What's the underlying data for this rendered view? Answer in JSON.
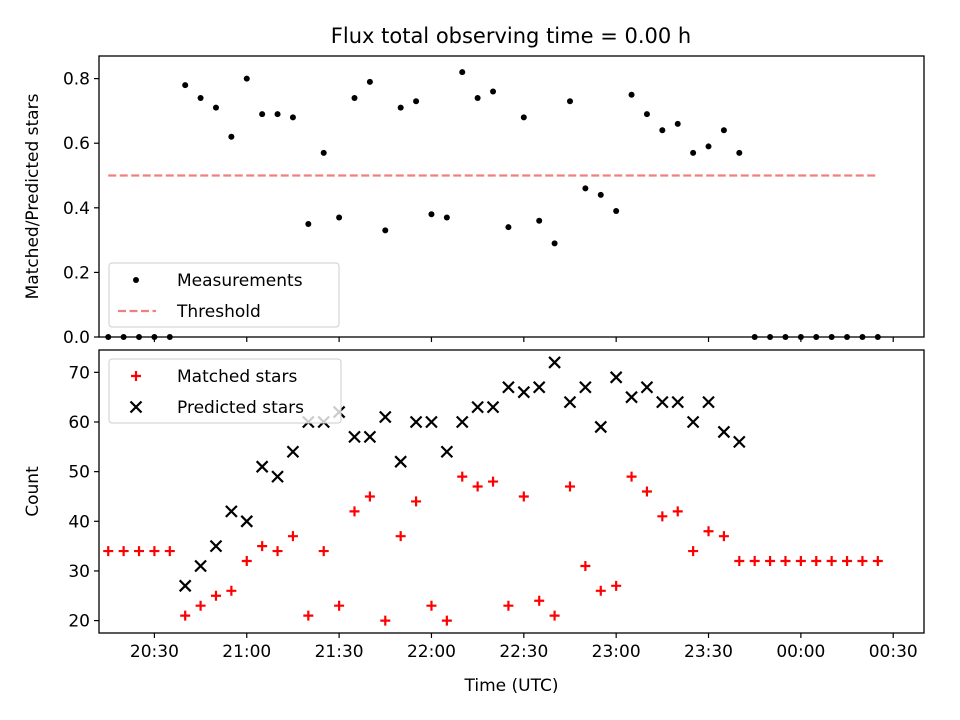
{
  "figure": {
    "title": "Flux total observing time = 0.00 h"
  },
  "chart_data": [
    {
      "type": "scatter",
      "panel": "top",
      "xlabel": "",
      "ylabel": "Matched/Predicted stars",
      "xlim": [
        "20:12",
        "00:40"
      ],
      "ylim": [
        0,
        0.87
      ],
      "yticks": [
        "0.0",
        "0.2",
        "0.4",
        "0.6",
        "0.8"
      ],
      "legend": {
        "placement": "lower-left",
        "entries": [
          "Measurements",
          "Threshold"
        ]
      },
      "series": [
        {
          "name": "Measurements",
          "color": "#000000",
          "marker": "dot",
          "x": [
            "20:15",
            "20:20",
            "20:25",
            "20:30",
            "20:35",
            "20:40",
            "20:45",
            "20:50",
            "20:55",
            "21:00",
            "21:05",
            "21:10",
            "21:15",
            "21:20",
            "21:25",
            "21:30",
            "21:35",
            "21:40",
            "21:45",
            "21:50",
            "21:55",
            "22:00",
            "22:05",
            "22:10",
            "22:15",
            "22:20",
            "22:25",
            "22:30",
            "22:35",
            "22:40",
            "22:45",
            "22:50",
            "22:55",
            "23:00",
            "23:05",
            "23:10",
            "23:15",
            "23:20",
            "23:25",
            "23:30",
            "23:35",
            "23:40",
            "23:45",
            "23:50",
            "23:55",
            "00:00",
            "00:05",
            "00:10",
            "00:15",
            "00:20",
            "00:25"
          ],
          "y": [
            0,
            0,
            0,
            0,
            0,
            0.78,
            0.74,
            0.71,
            0.62,
            0.8,
            0.69,
            0.69,
            0.68,
            0.35,
            0.57,
            0.37,
            0.74,
            0.79,
            0.33,
            0.71,
            0.73,
            0.38,
            0.37,
            0.82,
            0.74,
            0.76,
            0.34,
            0.68,
            0.36,
            0.29,
            0.73,
            0.46,
            0.44,
            0.39,
            0.75,
            0.69,
            0.64,
            0.66,
            0.57,
            0.59,
            0.64,
            0.57,
            0,
            0,
            0,
            0,
            0,
            0,
            0,
            0,
            0
          ]
        },
        {
          "name": "Threshold",
          "color": "#f08080",
          "style": "dashed",
          "x": [
            "20:15",
            "00:25"
          ],
          "y": [
            0.5,
            0.5
          ]
        }
      ]
    },
    {
      "type": "scatter",
      "panel": "bottom",
      "xlabel": "Time (UTC)",
      "ylabel": "Count",
      "xlim": [
        "20:12",
        "00:40"
      ],
      "ylim": [
        17.5,
        74.5
      ],
      "xticks": [
        "20:30",
        "21:00",
        "21:30",
        "22:00",
        "22:30",
        "23:00",
        "23:30",
        "00:00",
        "00:30"
      ],
      "yticks": [
        "20",
        "30",
        "40",
        "50",
        "60",
        "70"
      ],
      "legend": {
        "placement": "upper-left",
        "entries": [
          "Matched stars",
          "Predicted stars"
        ]
      },
      "series": [
        {
          "name": "Matched stars",
          "color": "#ff0000",
          "marker": "plus",
          "x": [
            "20:15",
            "20:20",
            "20:25",
            "20:30",
            "20:35",
            "20:40",
            "20:45",
            "20:50",
            "20:55",
            "21:00",
            "21:05",
            "21:10",
            "21:15",
            "21:20",
            "21:25",
            "21:30",
            "21:35",
            "21:40",
            "21:45",
            "21:50",
            "21:55",
            "22:00",
            "22:05",
            "22:10",
            "22:15",
            "22:20",
            "22:25",
            "22:30",
            "22:35",
            "22:40",
            "22:45",
            "22:50",
            "22:55",
            "23:00",
            "23:05",
            "23:10",
            "23:15",
            "23:20",
            "23:25",
            "23:30",
            "23:35",
            "23:40",
            "23:45",
            "23:50",
            "23:55",
            "00:00",
            "00:05",
            "00:10",
            "00:15",
            "00:20",
            "00:25"
          ],
          "y": [
            34,
            34,
            34,
            34,
            34,
            21,
            23,
            25,
            26,
            32,
            35,
            34,
            37,
            21,
            34,
            23,
            42,
            45,
            20,
            37,
            44,
            23,
            20,
            49,
            47,
            48,
            23,
            45,
            24,
            21,
            47,
            31,
            26,
            27,
            49,
            46,
            41,
            42,
            34,
            38,
            37,
            32,
            32,
            32,
            32,
            32,
            32,
            32,
            32,
            32,
            32
          ]
        },
        {
          "name": "Predicted stars",
          "color": "#000000",
          "marker": "x",
          "x": [
            "20:40",
            "20:45",
            "20:50",
            "20:55",
            "21:00",
            "21:05",
            "21:10",
            "21:15",
            "21:20",
            "21:25",
            "21:30",
            "21:35",
            "21:40",
            "21:45",
            "21:50",
            "21:55",
            "22:00",
            "22:05",
            "22:10",
            "22:15",
            "22:20",
            "22:25",
            "22:30",
            "22:35",
            "22:40",
            "22:45",
            "22:50",
            "22:55",
            "23:00",
            "23:05",
            "23:10",
            "23:15",
            "23:20",
            "23:25",
            "23:30",
            "23:35",
            "23:40"
          ],
          "y": [
            27,
            31,
            35,
            42,
            40,
            51,
            49,
            54,
            60,
            60,
            62,
            57,
            57,
            61,
            52,
            60,
            60,
            54,
            60,
            63,
            63,
            67,
            66,
            67,
            72,
            64,
            67,
            59,
            69,
            65,
            67,
            64,
            64,
            60,
            64,
            58,
            56
          ]
        }
      ]
    }
  ]
}
